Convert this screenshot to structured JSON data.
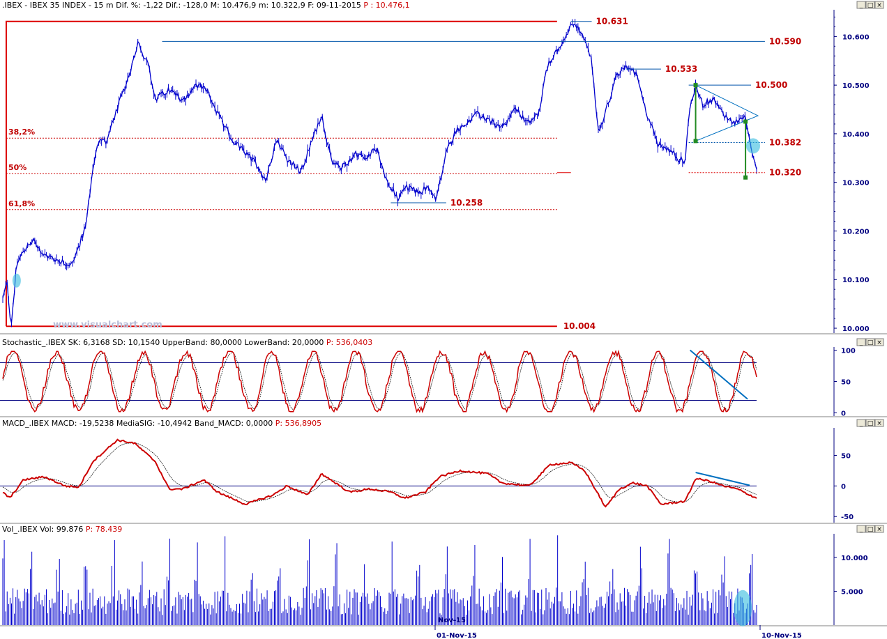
{
  "panels": {
    "price_header": {
      "symbol": ".IBEX",
      "name": "IBEX 35 INDEX",
      "interval": "15 m",
      "dif_pct": "Dif. %: -1,22",
      "dif": "Dif.: -128,0",
      "max": "M: 10.476,9",
      "min": "m: 10.322,9",
      "date": "F: 09-11-2015",
      "price": "P : 10.476,1"
    },
    "stoch_header": {
      "label": "Stochastic_.IBEX SK: 6,3168",
      "sd": "SD: 10,1540",
      "upper": "UpperBand: 80,0000",
      "lower": "LowerBand: 20,0000",
      "price": "P: 536,0403"
    },
    "macd_header": {
      "label": "MACD_.IBEX MACD: -19,5238",
      "sig": "MediaSIG: -10,4942",
      "band": "Band_MACD: 0,0000",
      "price": "P: 536,8905"
    },
    "vol_header": {
      "label": "Vol_.IBEX Vol: 99.876",
      "price": "P: 78.439"
    }
  },
  "watermark": "www.visualchart.com",
  "window_buttons": [
    "_",
    "□",
    "×"
  ],
  "colors": {
    "price": "#0000cc",
    "stoch": "#cc0000",
    "macd": "#cc0000",
    "signal": "#000000",
    "volume": "#0000cc",
    "fib": "#cc0000",
    "trend": "#0070c0",
    "highlight": "#33bbdd",
    "green": "#228b22"
  },
  "chart_data": [
    {
      "type": "line",
      "title": "IBEX 35 INDEX 15 m",
      "ylim": [
        9990,
        10655
      ],
      "y_ticks": [
        {
          "v": 10000,
          "label": "10.000"
        },
        {
          "v": 10100,
          "label": "10.100"
        },
        {
          "v": 10200,
          "label": "10.200"
        },
        {
          "v": 10300,
          "label": "10.300"
        },
        {
          "v": 10400,
          "label": "10.400"
        },
        {
          "v": 10500,
          "label": "10.500"
        },
        {
          "v": 10600,
          "label": "10.600"
        }
      ],
      "x_labels": [
        {
          "label": "01-Nov-15",
          "i": 0.545
        },
        {
          "label": "10-Nov-15",
          "i": 0.97
        }
      ],
      "keypoints": [
        [
          0,
          10060
        ],
        [
          0.006,
          10095
        ],
        [
          0.012,
          10005
        ],
        [
          0.02,
          10130
        ],
        [
          0.03,
          10160
        ],
        [
          0.045,
          10180
        ],
        [
          0.06,
          10150
        ],
        [
          0.08,
          10140
        ],
        [
          0.1,
          10130
        ],
        [
          0.11,
          10170
        ],
        [
          0.12,
          10210
        ],
        [
          0.13,
          10330
        ],
        [
          0.14,
          10395
        ],
        [
          0.15,
          10380
        ],
        [
          0.16,
          10430
        ],
        [
          0.17,
          10470
        ],
        [
          0.18,
          10510
        ],
        [
          0.19,
          10560
        ],
        [
          0.195,
          10590
        ],
        [
          0.21,
          10540
        ],
        [
          0.22,
          10470
        ],
        [
          0.24,
          10490
        ],
        [
          0.26,
          10470
        ],
        [
          0.28,
          10500
        ],
        [
          0.295,
          10490
        ],
        [
          0.31,
          10440
        ],
        [
          0.33,
          10390
        ],
        [
          0.35,
          10360
        ],
        [
          0.365,
          10340
        ],
        [
          0.38,
          10305
        ],
        [
          0.395,
          10390
        ],
        [
          0.41,
          10350
        ],
        [
          0.43,
          10320
        ],
        [
          0.445,
          10380
        ],
        [
          0.46,
          10440
        ],
        [
          0.475,
          10340
        ],
        [
          0.49,
          10330
        ],
        [
          0.51,
          10360
        ],
        [
          0.525,
          10350
        ],
        [
          0.54,
          10370
        ],
        [
          0.555,
          10300
        ],
        [
          0.57,
          10265
        ],
        [
          0.58,
          10290
        ],
        [
          0.6,
          10280
        ],
        [
          0.615,
          10290
        ],
        [
          0.625,
          10262
        ],
        [
          0.64,
          10360
        ],
        [
          0.655,
          10410
        ],
        [
          0.67,
          10420
        ],
        [
          0.685,
          10440
        ],
        [
          0.7,
          10430
        ],
        [
          0.72,
          10410
        ],
        [
          0.74,
          10450
        ],
        [
          0.76,
          10420
        ],
        [
          0.775,
          10450
        ],
        [
          0.785,
          10535
        ],
        [
          0.8,
          10570
        ],
        [
          0.815,
          10610
        ],
        [
          0.825,
          10631
        ],
        [
          0.84,
          10590
        ],
        [
          0.85,
          10550
        ],
        [
          0.86,
          10400
        ],
        [
          0.87,
          10445
        ],
        [
          0.885,
          10515
        ],
        [
          0.9,
          10540
        ],
        [
          0.915,
          10520
        ],
        [
          0.93,
          10440
        ],
        [
          0.945,
          10380
        ],
        [
          0.96,
          10370
        ],
        [
          0.975,
          10350
        ],
        [
          0.985,
          10340
        ],
        [
          0.99,
          10440
        ],
        [
          1.0,
          10500
        ],
        [
          1.01,
          10460
        ],
        [
          1.025,
          10470
        ],
        [
          1.04,
          10440
        ],
        [
          1.055,
          10420
        ],
        [
          1.07,
          10440
        ],
        [
          1.08,
          10370
        ],
        [
          1.088,
          10330
        ]
      ],
      "levels": [
        {
          "label": "10.631",
          "value": 10631,
          "from": 0.82,
          "to": 0.85
        },
        {
          "label": "10.590",
          "value": 10590,
          "from": 0.23,
          "to": 1.1
        },
        {
          "label": "10.533",
          "value": 10533,
          "from": 0.9,
          "to": 0.95
        },
        {
          "label": "10.500",
          "value": 10500,
          "from": 0.99,
          "to": 1.08
        },
        {
          "label": "10.382",
          "value": 10382,
          "from": 0.99,
          "to": 1.1
        },
        {
          "label": "10.320",
          "value": 10320,
          "from": 0.99,
          "to": 1.1
        },
        {
          "label": "10.258",
          "value": 10258,
          "from": 0.56,
          "to": 0.64
        },
        {
          "label": "10.004",
          "value": 10004,
          "from": 0.0,
          "to": 1.0
        }
      ],
      "fib": [
        {
          "label": "38,2%",
          "value": 10391
        },
        {
          "label": "50%",
          "value": 10318
        },
        {
          "label": "61,8%",
          "value": 10244
        }
      ]
    },
    {
      "type": "line",
      "title": "Stochastic",
      "ylim": [
        -5,
        105
      ],
      "y_ticks": [
        {
          "v": 0,
          "label": "0"
        },
        {
          "v": 50,
          "label": "50"
        },
        {
          "v": 100,
          "label": "100"
        }
      ],
      "bands": [
        80,
        20
      ]
    },
    {
      "type": "line",
      "title": "MACD",
      "ylim": [
        -60,
        95
      ],
      "y_ticks": [
        {
          "v": 0,
          "label": "0"
        },
        {
          "v": 50,
          "label": "50"
        },
        {
          "v": -50,
          "label": "-50"
        }
      ]
    },
    {
      "type": "bar",
      "title": "Volume",
      "ylim": [
        0,
        13500
      ],
      "y_ticks": [
        {
          "v": 5000,
          "label": "5.000"
        },
        {
          "v": 10000,
          "label": "10.000"
        }
      ],
      "x_overlay_label": "Nov-15"
    }
  ]
}
